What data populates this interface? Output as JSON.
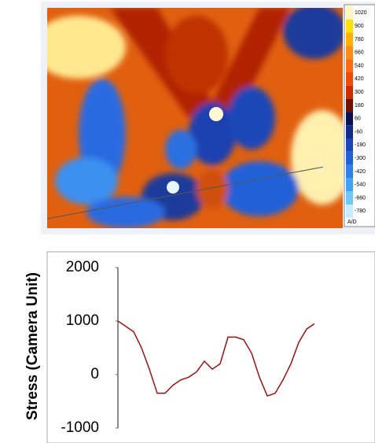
{
  "image_legend": {
    "labels": [
      "1020",
      "900",
      "780",
      "660",
      "540",
      "420",
      "300",
      "180",
      "60",
      "-60",
      "-180",
      "-300",
      "-420",
      "-540",
      "-660",
      "-780"
    ],
    "colors": [
      "#fff6c0",
      "#ffe000",
      "#ffb000",
      "#ff8c10",
      "#ff6a10",
      "#f04a08",
      "#d02a00",
      "#701000",
      "#0a1050",
      "#102a8a",
      "#1a46b8",
      "#2060d8",
      "#3080ec",
      "#40a0f4",
      "#70c8f8",
      "#c8ecff"
    ],
    "footer": "A/D"
  },
  "chart_data": {
    "type": "line",
    "y_label": "Stress (Camera Unit)",
    "series": [
      {
        "color": "#a01010",
        "values": [
          1000,
          900,
          800,
          500,
          100,
          -350,
          -350,
          -200,
          -100,
          -50,
          50,
          250,
          100,
          200,
          700,
          700,
          650,
          400,
          -50,
          -400,
          -350,
          -100,
          200,
          600,
          850,
          950
        ]
      }
    ],
    "ylim": [
      -1000,
      2000
    ],
    "yticks": [
      2000,
      1000,
      0,
      -1000
    ]
  }
}
